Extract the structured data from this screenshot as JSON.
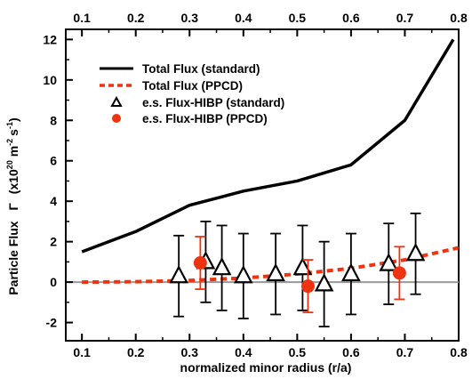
{
  "chart_data": {
    "type": "line",
    "xlabel": "normalized minor radius  (r/a)",
    "ylabel": "Particle Flux",
    "ylabel_symbol": "Γ",
    "ylabel_units_prefix": "(x10",
    "ylabel_units_exp1": "20",
    "ylabel_units_mid": " m",
    "ylabel_units_exp2": "-2",
    "ylabel_units_s": "s",
    "ylabel_units_exp3": "-1",
    "ylabel_units_suffix": ")",
    "xlim": [
      0.07,
      0.8
    ],
    "ylim": [
      -2.9,
      12.5
    ],
    "x_ticks": [
      "0.1",
      "0.2",
      "0.3",
      "0.4",
      "0.5",
      "0.6",
      "0.7",
      "0.8"
    ],
    "x_tick_values": [
      0.1,
      0.2,
      0.3,
      0.4,
      0.5,
      0.6,
      0.7,
      0.8
    ],
    "y_ticks": [
      "-2",
      "0",
      "2",
      "4",
      "6",
      "8",
      "10",
      "12"
    ],
    "y_tick_values": [
      -2,
      0,
      2,
      4,
      6,
      8,
      10,
      12
    ],
    "grid": false,
    "zero_line": true,
    "legend_position": "upper-left",
    "colors": {
      "standard": "#000000",
      "ppcd": "#ee3311",
      "zero_line": "#999999"
    },
    "series": [
      {
        "name": "Total Flux (standard)",
        "kind": "line",
        "style": "solid",
        "x": [
          0.1,
          0.2,
          0.3,
          0.4,
          0.5,
          0.6,
          0.7,
          0.79
        ],
        "y": [
          1.5,
          2.5,
          3.8,
          4.5,
          5.0,
          5.8,
          8.0,
          12.0
        ]
      },
      {
        "name": "Total Flux (PPCD)",
        "kind": "line",
        "style": "dashed",
        "x": [
          0.1,
          0.2,
          0.3,
          0.4,
          0.5,
          0.6,
          0.7,
          0.8
        ],
        "y": [
          0.0,
          0.02,
          0.08,
          0.2,
          0.4,
          0.68,
          1.1,
          1.7
        ]
      },
      {
        "name": "e.s. Flux-HIBP (standard)",
        "kind": "scatter",
        "marker": "triangle",
        "x": [
          0.28,
          0.33,
          0.36,
          0.4,
          0.46,
          0.51,
          0.55,
          0.6,
          0.67,
          0.72
        ],
        "y": [
          0.3,
          1.0,
          0.7,
          0.3,
          0.4,
          0.7,
          -0.1,
          0.4,
          0.9,
          1.4
        ],
        "err": [
          2.0,
          2.0,
          2.1,
          2.1,
          2.0,
          2.1,
          2.1,
          2.0,
          2.0,
          2.0
        ]
      },
      {
        "name": "e.s. Flux-HIBP (PPCD)",
        "kind": "scatter",
        "marker": "circle",
        "x": [
          0.32,
          0.52,
          0.69
        ],
        "y": [
          0.95,
          -0.2,
          0.45
        ],
        "err": [
          1.3,
          1.3,
          1.3
        ]
      }
    ]
  }
}
